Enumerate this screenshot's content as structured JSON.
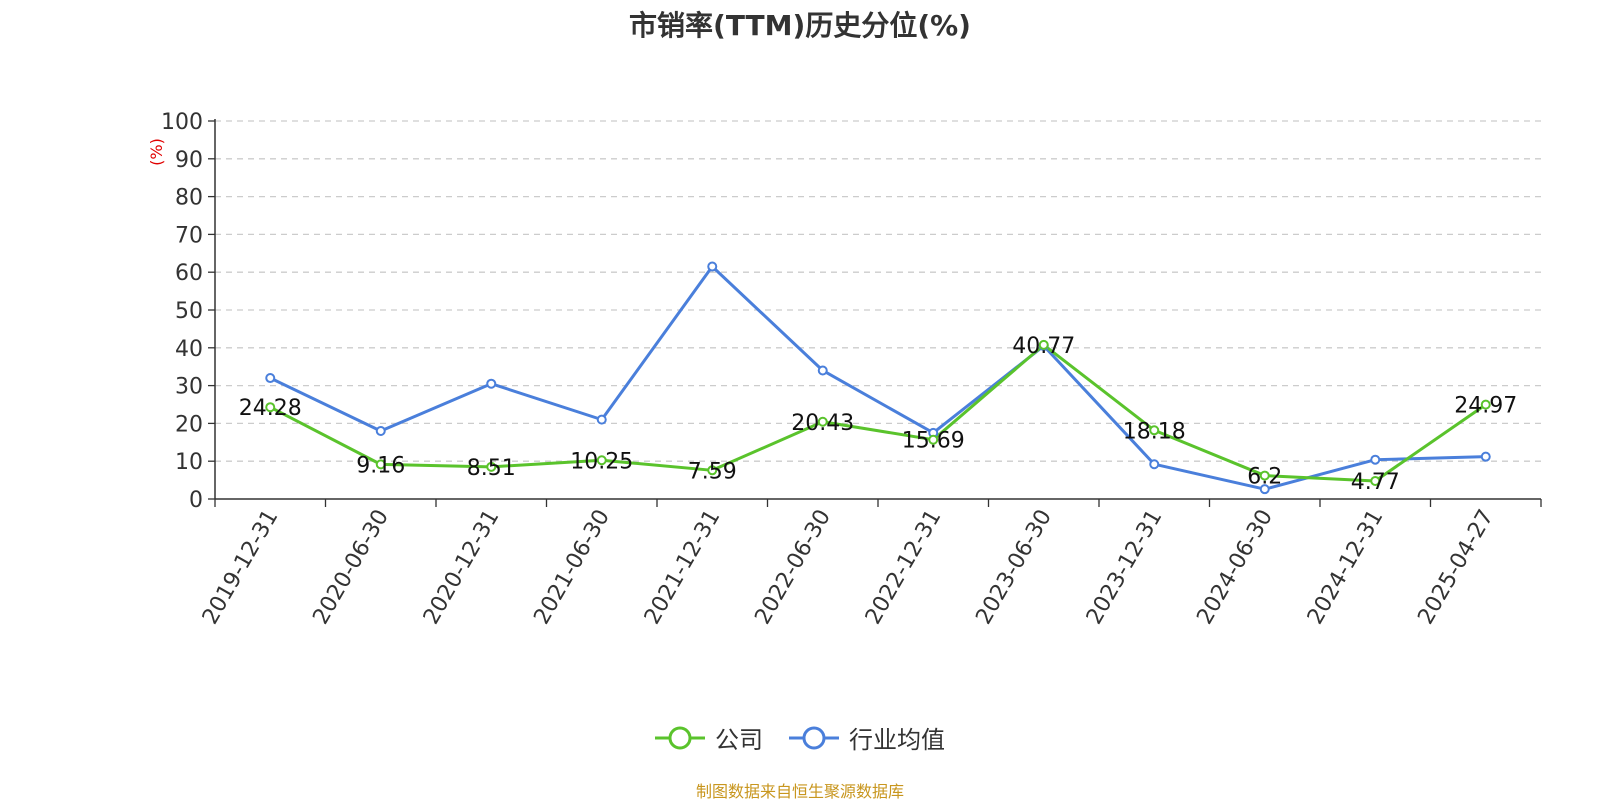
{
  "chart_data": {
    "type": "line",
    "title": "市销率(TTM)历史分位(%)",
    "ylabel": "(%)",
    "ylim": [
      0,
      100
    ],
    "yticks": [
      0,
      10,
      20,
      30,
      40,
      50,
      60,
      70,
      80,
      90,
      100
    ],
    "categories": [
      "2019-12-31",
      "2020-06-30",
      "2020-12-31",
      "2021-06-30",
      "2021-12-31",
      "2022-06-30",
      "2022-12-31",
      "2023-06-30",
      "2023-12-31",
      "2024-06-30",
      "2024-12-31",
      "2025-04-27"
    ],
    "series": [
      {
        "name": "公司",
        "color": "#5ac32c",
        "values": [
          24.28,
          9.16,
          8.51,
          10.25,
          7.59,
          20.43,
          15.69,
          40.77,
          18.18,
          6.2,
          4.77,
          24.97
        ],
        "labels_shown": true
      },
      {
        "name": "行业均值",
        "color": "#4a7fdb",
        "values": [
          32,
          18,
          30.5,
          21,
          61.5,
          34,
          17.5,
          40.5,
          9.2,
          2.6,
          10.4,
          11.2
        ],
        "labels_shown": false
      }
    ],
    "grid": "horizontal dashed",
    "legend_position": "bottom-center"
  },
  "legend": {
    "company": "公司",
    "industry": "行业均值"
  },
  "source": {
    "text": "制图数据来自恒生聚源数据库",
    "color": "#c8961e"
  },
  "colors": {
    "axis": "#333333",
    "grid": "#cccccc",
    "ylabel": "#e00000"
  }
}
